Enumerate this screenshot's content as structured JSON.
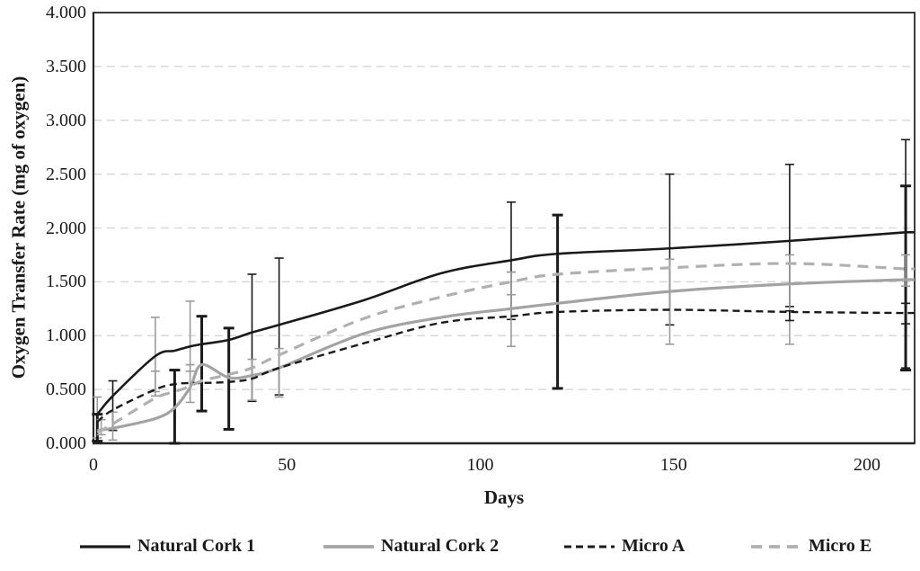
{
  "chart_data": {
    "type": "line",
    "title": "",
    "xlabel": "Days",
    "ylabel": "Oxygen Transfer Rate (mg of oxygen)",
    "xlim": [
      0,
      212
    ],
    "ylim": [
      0,
      4
    ],
    "x_ticks": [
      "0",
      "50",
      "100",
      "150",
      "200"
    ],
    "x_tick_values": [
      0,
      50,
      100,
      150,
      200
    ],
    "y_ticks": [
      "0.000",
      "0.500",
      "1.000",
      "1.500",
      "2.000",
      "2.500",
      "3.000",
      "3.500",
      "4.000"
    ],
    "y_tick_values": [
      0,
      0.5,
      1,
      1.5,
      2,
      2.5,
      3,
      3.5,
      4
    ],
    "grid": "horizontal-dashed",
    "legend_position": "bottom",
    "x": [
      1,
      5,
      16,
      21,
      25,
      28,
      35,
      41,
      48,
      70,
      90,
      108,
      120,
      149,
      180,
      210
    ],
    "series": [
      {
        "name": "Natural Cork 1",
        "style": "solid",
        "color": "#1a1a1a",
        "width": 2.6,
        "dash": "",
        "values": [
          0.27,
          0.44,
          0.81,
          0.86,
          0.9,
          0.92,
          0.96,
          1.03,
          1.1,
          1.33,
          1.58,
          1.7,
          1.76,
          1.81,
          1.88,
          1.96
        ]
      },
      {
        "name": "Natural Cork 2",
        "style": "solid",
        "color": "#a3a3a3",
        "width": 3.2,
        "dash": "",
        "values": [
          0.12,
          0.14,
          0.23,
          0.33,
          0.52,
          0.73,
          0.61,
          0.63,
          0.7,
          1.02,
          1.17,
          1.25,
          1.3,
          1.41,
          1.48,
          1.52
        ]
      },
      {
        "name": "Micro A",
        "style": "dashed",
        "color": "#1a1a1a",
        "width": 2.4,
        "dash": "8 5",
        "values": [
          0.2,
          0.31,
          0.5,
          0.55,
          0.56,
          0.56,
          0.57,
          0.6,
          0.7,
          0.93,
          1.12,
          1.18,
          1.22,
          1.24,
          1.22,
          1.21
        ]
      },
      {
        "name": "Micro E",
        "style": "dashed",
        "color": "#b0b0b0",
        "width": 3.2,
        "dash": "12 8",
        "values": [
          0.1,
          0.18,
          0.42,
          0.48,
          0.53,
          0.58,
          0.64,
          0.7,
          0.82,
          1.16,
          1.36,
          1.5,
          1.57,
          1.63,
          1.67,
          1.62
        ]
      }
    ],
    "error_bars": [
      {
        "x": 1,
        "lo": 0.05,
        "hi": 0.43,
        "color": "gray",
        "weight": "thin"
      },
      {
        "x": 1,
        "lo": 0.02,
        "hi": 0.27,
        "color": "black",
        "weight": "thick"
      },
      {
        "x": 2,
        "lo": 0.08,
        "hi": 0.22,
        "color": "gray",
        "weight": "thin"
      },
      {
        "x": 5,
        "lo": 0.12,
        "hi": 0.58,
        "color": "black",
        "weight": "thin"
      },
      {
        "x": 5,
        "lo": 0.03,
        "hi": 0.29,
        "color": "gray",
        "weight": "thin"
      },
      {
        "x": 16,
        "lo": 0.44,
        "hi": 1.17,
        "color": "gray",
        "weight": "thin"
      },
      {
        "x": 16,
        "lo": 0.48,
        "hi": 0.67,
        "color": "gray",
        "weight": "thin"
      },
      {
        "x": 21,
        "lo": 0.0,
        "hi": 0.68,
        "color": "black",
        "weight": "thick"
      },
      {
        "x": 25,
        "lo": 0.38,
        "hi": 1.32,
        "color": "gray",
        "weight": "thin"
      },
      {
        "x": 25,
        "lo": 0.67,
        "hi": 0.73,
        "color": "gray",
        "weight": "thin"
      },
      {
        "x": 28,
        "lo": 0.3,
        "hi": 1.18,
        "color": "black",
        "weight": "thick"
      },
      {
        "x": 35,
        "lo": 0.13,
        "hi": 1.07,
        "color": "black",
        "weight": "thick"
      },
      {
        "x": 41,
        "lo": 0.39,
        "hi": 1.57,
        "color": "black",
        "weight": "thin"
      },
      {
        "x": 41,
        "lo": 0.4,
        "hi": 0.78,
        "color": "gray",
        "weight": "thin"
      },
      {
        "x": 48,
        "lo": 0.45,
        "hi": 1.72,
        "color": "black",
        "weight": "thin"
      },
      {
        "x": 48,
        "lo": 0.43,
        "hi": 0.88,
        "color": "gray",
        "weight": "thin"
      },
      {
        "x": 108,
        "lo": 1.15,
        "hi": 2.24,
        "color": "black",
        "weight": "thin"
      },
      {
        "x": 108,
        "lo": 0.9,
        "hi": 1.59,
        "color": "gray",
        "weight": "thin"
      },
      {
        "x": 108,
        "lo": 1.38,
        "hi": 1.59,
        "color": "gray",
        "weight": "thin"
      },
      {
        "x": 120,
        "lo": 0.51,
        "hi": 2.12,
        "color": "black",
        "weight": "thick"
      },
      {
        "x": 149,
        "lo": 1.1,
        "hi": 2.5,
        "color": "black",
        "weight": "thin"
      },
      {
        "x": 149,
        "lo": 0.92,
        "hi": 1.71,
        "color": "gray",
        "weight": "thin"
      },
      {
        "x": 180,
        "lo": 1.27,
        "hi": 2.59,
        "color": "black",
        "weight": "thin"
      },
      {
        "x": 180,
        "lo": 0.92,
        "hi": 1.75,
        "color": "gray",
        "weight": "thin"
      },
      {
        "x": 180,
        "lo": 1.14,
        "hi": 1.23,
        "color": "black",
        "weight": "thin"
      },
      {
        "x": 210,
        "lo": 0.7,
        "hi": 2.82,
        "color": "black",
        "weight": "thin"
      },
      {
        "x": 210,
        "lo": 0.68,
        "hi": 2.39,
        "color": "black",
        "weight": "thick"
      },
      {
        "x": 210,
        "lo": 1.46,
        "hi": 1.75,
        "color": "gray",
        "weight": "thin"
      },
      {
        "x": 210,
        "lo": 1.11,
        "hi": 1.3,
        "color": "black",
        "weight": "thin"
      }
    ],
    "colors": {
      "error_bar_black": "#1a1a1a",
      "error_bar_gray": "#9b9b9b",
      "gridline": "#d9d9d9",
      "plot_border": "#262626",
      "background": "#ffffff"
    }
  }
}
